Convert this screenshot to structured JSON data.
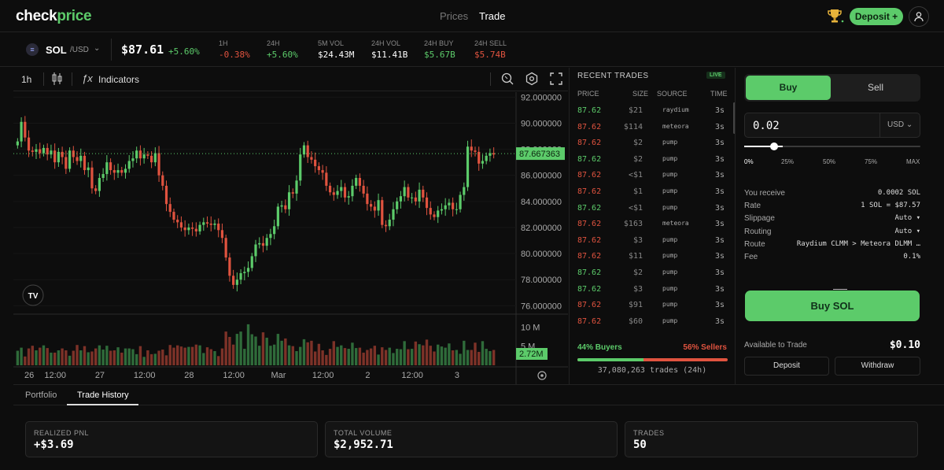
{
  "colors": {
    "green": "#5ccb6a",
    "red": "#e0533f",
    "background": "#0d0d0d"
  },
  "nav": {
    "logo_main": "check",
    "logo_accent": "price",
    "prices_label": "Prices",
    "trade_label": "Trade",
    "deposit_label": "Deposit +",
    "icons": {
      "trophy": "trophy-icon",
      "user": "user-icon"
    }
  },
  "ticker": {
    "symbol": "SOL",
    "quote": "/USD",
    "price": "$87.61",
    "change": "+5.60%",
    "stats": [
      {
        "label": "1H",
        "value": "-0.38%",
        "tone": "red"
      },
      {
        "label": "24H",
        "value": "+5.60%",
        "tone": "green"
      },
      {
        "label": "5M VOL",
        "value": "$24.43M",
        "tone": "white"
      },
      {
        "label": "24H VOL",
        "value": "$11.41B",
        "tone": "white"
      },
      {
        "label": "24H BUY",
        "value": "$5.67B",
        "tone": "green"
      },
      {
        "label": "24H SELL",
        "value": "$5.74B",
        "tone": "red"
      }
    ]
  },
  "chart_toolbar": {
    "timeframe": "1h",
    "indicators_label": "Indicators"
  },
  "chart_data": {
    "type": "candlestick",
    "price_axis_ticks": [
      "92.000000",
      "90.000000",
      "88.000000",
      "86.000000",
      "84.000000",
      "82.000000",
      "80.000000",
      "78.000000",
      "76.000000"
    ],
    "price_range": [
      75.6,
      92.2
    ],
    "current_price_label": "87.667363",
    "current_price": 87.667363,
    "volume_axis_ticks": [
      "10 M",
      "5 M"
    ],
    "volume_max": 11.5,
    "current_volume_label": "2.72M",
    "time_ticks": [
      "26",
      "12:00",
      "27",
      "12:00",
      "28",
      "12:00",
      "Mar",
      "12:00",
      "2",
      "12:00",
      "3"
    ],
    "time_tick_bar_index": [
      3,
      17,
      41,
      65,
      89,
      113,
      137,
      161,
      185,
      209,
      233
    ],
    "price_path": [
      88.6,
      90.1,
      88.9,
      87.9,
      87.8,
      88.0,
      87.7,
      88.1,
      87.6,
      87.9,
      87.0,
      87.8,
      87.4,
      86.5,
      87.9,
      87.4,
      87.1,
      87.5,
      86.4,
      86.6,
      85.0,
      84.8,
      85.8,
      86.1,
      87.0,
      86.4,
      86.2,
      86.4,
      86.2,
      86.5,
      87.1,
      87.3,
      87.9,
      87.3,
      87.6,
      87.5,
      87.0,
      87.7,
      86.0,
      85.2,
      83.8,
      83.2,
      82.6,
      82.4,
      82.0,
      81.8,
      82.0,
      81.9,
      81.7,
      82.2,
      82.4,
      82.3,
      82.2,
      82.3,
      81.8,
      81.2,
      79.7,
      78.3,
      77.6,
      78.0,
      78.5,
      78.6,
      78.9,
      79.8,
      80.7,
      80.8,
      80.6,
      81.2,
      81.5,
      82.1,
      83.6,
      83.7,
      83.4,
      84.7,
      84.6,
      85.6,
      87.6,
      88.3,
      87.4,
      87.2,
      86.7,
      86.4,
      86.2,
      85.2,
      84.7,
      84.5,
      84.8,
      85.1,
      84.3,
      84.4,
      85.2,
      85.8,
      85.2,
      84.6,
      83.8,
      83.6,
      83.3,
      84.1,
      82.2,
      82.1,
      82.6,
      83.4,
      84.0,
      84.4,
      85.1,
      84.3,
      84.3,
      84.0,
      84.9,
      84.3,
      83.5,
      83.0,
      82.8,
      83.3,
      83.4,
      83.7,
      83.9,
      83.4,
      83.4,
      84.5,
      85.1,
      88.2,
      87.9,
      87.8,
      86.9,
      87.1,
      87.5,
      87.7,
      87.6
    ],
    "volume": [
      3.8,
      4.6,
      2.3,
      4.4,
      5.1,
      3.9,
      4.6,
      5.2,
      4.5,
      3.3,
      3.3,
      3.9,
      4.4,
      3.9,
      2.5,
      3.8,
      5.3,
      3.9,
      5.0,
      3.4,
      3.6,
      4.4,
      5.2,
      4.1,
      5.1,
      3.8,
      3.9,
      4.7,
      3.3,
      4.4,
      4.4,
      4.2,
      2.9,
      5.0,
      2.2,
      3.9,
      2.9,
      3.0,
      3.8,
      4.1,
      2.6,
      5.3,
      4.6,
      5.2,
      4.9,
      4.6,
      4.8,
      4.8,
      5.4,
      5.2,
      3.2,
      4.7,
      4.2,
      3.7,
      2.4,
      4.4,
      8.8,
      7.4,
      5.4,
      8.2,
      8.8,
      4.3,
      10.7,
      8.1,
      7.5,
      5.1,
      8.6,
      7.2,
      5.1,
      5.4,
      8.2,
      6.4,
      7.0,
      5.2,
      5.0,
      3.7,
      4.8,
      6.8,
      6.0,
      6.4,
      3.6,
      5.6,
      3.9,
      2.7,
      4.3,
      6.3,
      4.8,
      5.2,
      4.5,
      4.3,
      5.9,
      4.5,
      4.6,
      3.3,
      4.0,
      4.4,
      5.1,
      2.8,
      4.7,
      4.0,
      4.6,
      3.2,
      4.3,
      4.2,
      6.3,
      4.2,
      4.3,
      6.2,
      5.5,
      5.2,
      6.7,
      5.1,
      3.6,
      5.4,
      4.9,
      4.6,
      5.7,
      3.9,
      4.0,
      3.0,
      6.4,
      4.0,
      4.0,
      5.9,
      3.5,
      6.3,
      4.3,
      3.7,
      4.0
    ]
  },
  "recent_trades": {
    "title": "RECENT TRADES",
    "live_badge": "LIVE",
    "headers": [
      "PRICE",
      "SIZE",
      "SOURCE",
      "TIME"
    ],
    "rows": [
      {
        "price": "87.62",
        "size": "$21",
        "source": "raydium",
        "time": "3s",
        "side": "buy"
      },
      {
        "price": "87.62",
        "size": "$114",
        "source": "meteora",
        "time": "3s",
        "side": "sell"
      },
      {
        "price": "87.62",
        "size": "$2",
        "source": "pump",
        "time": "3s",
        "side": "sell"
      },
      {
        "price": "87.62",
        "size": "$2",
        "source": "pump",
        "time": "3s",
        "side": "buy"
      },
      {
        "price": "87.62",
        "size": "<$1",
        "source": "pump",
        "time": "3s",
        "side": "sell"
      },
      {
        "price": "87.62",
        "size": "$1",
        "source": "pump",
        "time": "3s",
        "side": "sell"
      },
      {
        "price": "87.62",
        "size": "<$1",
        "source": "pump",
        "time": "3s",
        "side": "buy"
      },
      {
        "price": "87.62",
        "size": "$163",
        "source": "meteora",
        "time": "3s",
        "side": "sell"
      },
      {
        "price": "87.62",
        "size": "$3",
        "source": "pump",
        "time": "3s",
        "side": "sell"
      },
      {
        "price": "87.62",
        "size": "$11",
        "source": "pump",
        "time": "3s",
        "side": "sell"
      },
      {
        "price": "87.62",
        "size": "$2",
        "source": "pump",
        "time": "3s",
        "side": "buy"
      },
      {
        "price": "87.62",
        "size": "$3",
        "source": "pump",
        "time": "3s",
        "side": "buy"
      },
      {
        "price": "87.62",
        "size": "$91",
        "source": "pump",
        "time": "3s",
        "side": "sell"
      },
      {
        "price": "87.62",
        "size": "$60",
        "source": "pump",
        "time": "3s",
        "side": "sell"
      }
    ],
    "buyers_label": "44% Buyers",
    "sellers_label": "56% Sellers",
    "buyers_fraction": 0.44,
    "trades_count": "37,080,263 trades (24h)"
  },
  "order": {
    "buy_tab": "Buy",
    "sell_tab": "Sell",
    "amount": "0.02",
    "unit": "USD",
    "slider_fraction": 0.22,
    "percent_marks": [
      "0%",
      "25%",
      "50%",
      "75%",
      "MAX"
    ],
    "info": [
      {
        "label": "You receive",
        "value": "0.0002 SOL"
      },
      {
        "label": "Rate",
        "value": "1 SOL = $87.57"
      },
      {
        "label": "Slippage",
        "value": "Auto ▾"
      },
      {
        "label": "Routing",
        "value": "Auto ▾"
      },
      {
        "label": "Route",
        "value": "Raydium CLMM > Meteora DLMM …"
      },
      {
        "label": "Fee",
        "value": "0.1%"
      }
    ],
    "buy_button": "Buy SOL",
    "available_label": "Available to Trade",
    "available_value": "$0.10",
    "deposit_button": "Deposit",
    "withdraw_button": "Withdraw"
  },
  "bottom": {
    "tabs": [
      "Portfolio",
      "Trade History"
    ],
    "cards": [
      {
        "label": "REALIZED PNL",
        "value": "+$3.69"
      },
      {
        "label": "TOTAL VOLUME",
        "value": "$2,952.71"
      },
      {
        "label": "TRADES",
        "value": "50"
      }
    ]
  }
}
